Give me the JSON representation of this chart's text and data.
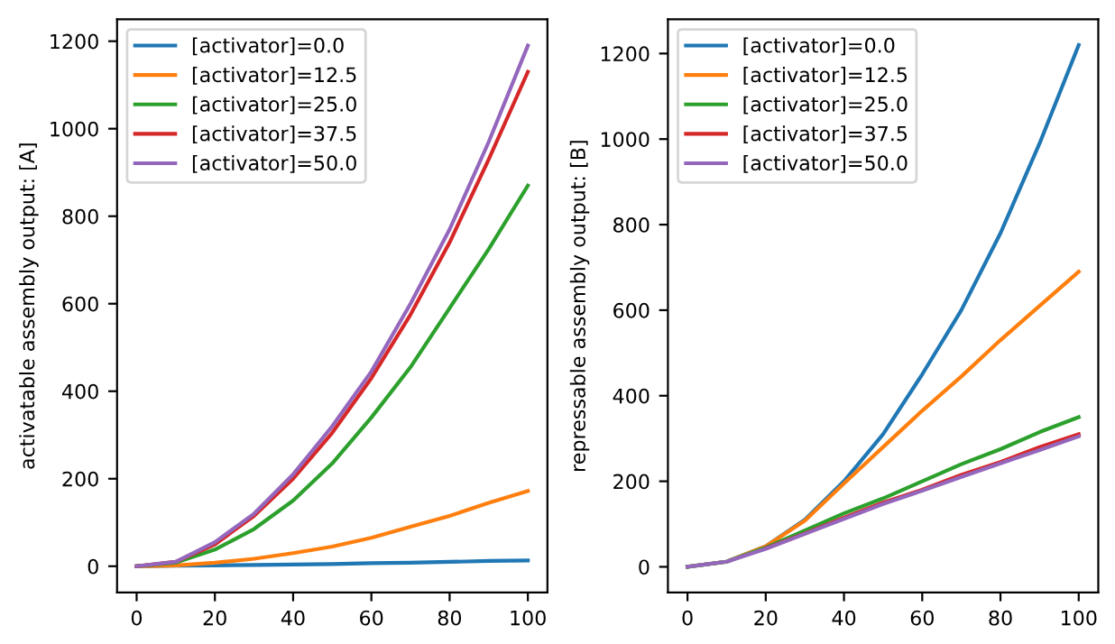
{
  "chart_data": [
    {
      "type": "line",
      "ylabel": "activatable assembly output: [A]",
      "x": [
        0,
        10,
        20,
        30,
        40,
        50,
        60,
        70,
        80,
        90,
        100
      ],
      "xlim": [
        -5,
        105
      ],
      "xticks": [
        0,
        20,
        40,
        60,
        80,
        100
      ],
      "ylim": [
        -60,
        1250
      ],
      "yticks": [
        0,
        200,
        400,
        600,
        800,
        1000,
        1200
      ],
      "grid": false,
      "legend": "top left",
      "series": [
        {
          "name": "[activator]=0.0",
          "color": "#1f77b4",
          "values": [
            0,
            1,
            2,
            3,
            4,
            5,
            7,
            8,
            10,
            12,
            13
          ]
        },
        {
          "name": "[activator]=12.5",
          "color": "#ff7f0e",
          "values": [
            0,
            2,
            8,
            17,
            30,
            45,
            65,
            90,
            115,
            145,
            172
          ]
        },
        {
          "name": "[activator]=25.0",
          "color": "#2ca02c",
          "values": [
            0,
            8,
            38,
            85,
            150,
            235,
            340,
            455,
            590,
            725,
            870
          ]
        },
        {
          "name": "[activator]=37.5",
          "color": "#d62728",
          "values": [
            0,
            10,
            50,
            115,
            200,
            305,
            430,
            575,
            740,
            930,
            1130
          ]
        },
        {
          "name": "[activator]=50.0",
          "color": "#9467bd",
          "values": [
            0,
            10,
            55,
            120,
            210,
            320,
            445,
            600,
            770,
            970,
            1190
          ]
        }
      ]
    },
    {
      "type": "line",
      "ylabel": "repressable assembly output: [B]",
      "x": [
        0,
        10,
        20,
        30,
        40,
        50,
        60,
        70,
        80,
        90,
        100
      ],
      "xlim": [
        -5,
        105
      ],
      "xticks": [
        0,
        20,
        40,
        60,
        80,
        100
      ],
      "ylim": [
        -60,
        1280
      ],
      "yticks": [
        0,
        200,
        400,
        600,
        800,
        1000,
        1200
      ],
      "grid": false,
      "legend": "top left",
      "series": [
        {
          "name": "[activator]=0.0",
          "color": "#1f77b4",
          "values": [
            0,
            12,
            48,
            110,
            200,
            310,
            450,
            600,
            780,
            990,
            1220
          ]
        },
        {
          "name": "[activator]=12.5",
          "color": "#ff7f0e",
          "values": [
            0,
            12,
            48,
            108,
            195,
            280,
            365,
            445,
            530,
            610,
            690
          ]
        },
        {
          "name": "[activator]=25.0",
          "color": "#2ca02c",
          "values": [
            0,
            12,
            45,
            85,
            125,
            160,
            200,
            240,
            275,
            315,
            350
          ]
        },
        {
          "name": "[activator]=37.5",
          "color": "#d62728",
          "values": [
            null,
            null,
            43,
            78,
            115,
            150,
            180,
            215,
            245,
            280,
            310
          ]
        },
        {
          "name": "[activator]=50.0",
          "color": "#9467bd",
          "values": [
            0,
            12,
            42,
            77,
            112,
            147,
            178,
            210,
            242,
            273,
            305
          ]
        }
      ]
    }
  ]
}
